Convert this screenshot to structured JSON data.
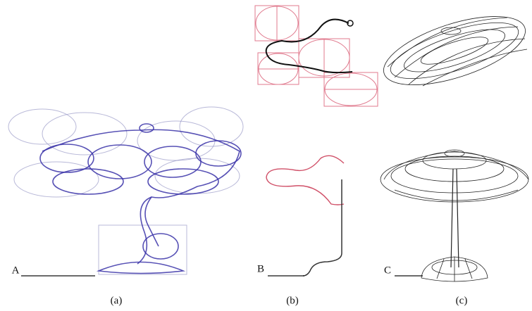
{
  "panels": [
    {
      "marker": "A",
      "caption": "(a)"
    },
    {
      "marker": "B",
      "caption": "(b)"
    },
    {
      "marker": "C",
      "caption": "(c)"
    }
  ]
}
